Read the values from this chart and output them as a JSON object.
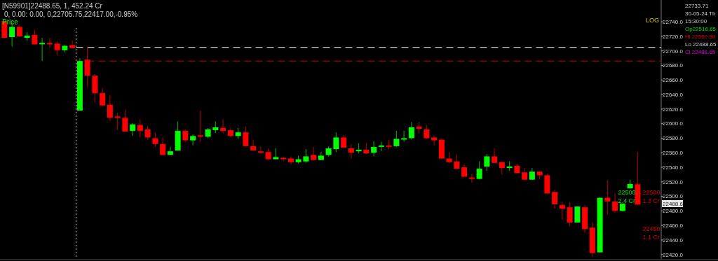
{
  "chart_data": {
    "type": "candlestick",
    "title": "[N59901]22488.65,   1,  452.24  Cr",
    "subtitle": "0,  0.00:  0.00,  0,22705.75,22417.00,-0.95%",
    "ylabel": "Price",
    "categories": [
      null,
      null,
      null,
      null,
      null,
      null,
      null,
      null,
      null,
      null,
      null,
      null,
      null,
      null,
      null,
      null,
      null,
      null,
      null,
      null,
      null,
      null,
      null,
      null,
      null,
      null,
      null,
      null,
      null,
      null,
      null,
      null,
      null,
      null,
      null,
      null,
      null,
      null,
      null,
      null,
      null,
      null,
      null,
      null,
      null,
      null,
      null,
      null,
      null,
      null,
      null,
      null,
      null,
      null,
      null,
      null,
      null,
      null,
      null,
      null,
      null,
      null,
      null,
      null,
      null,
      null,
      null,
      null,
      null,
      null,
      null,
      null,
      null,
      null,
      null,
      null,
      null,
      null,
      null,
      null,
      null,
      null,
      null,
      null,
      null
    ],
    "tick_labels": "y",
    "ylim": [
      22414,
      22770
    ],
    "yticks": [
      {
        "value": 22420,
        "label": "22420.0"
      },
      {
        "value": 22440,
        "label": "22440.0"
      },
      {
        "value": 22460,
        "label": "22460.0"
      },
      {
        "value": 22480,
        "label": "22480.0"
      },
      {
        "value": 22500,
        "label": "22500.0"
      },
      {
        "value": 22520,
        "label": "22520.0"
      },
      {
        "value": 22540,
        "label": "22540.0"
      },
      {
        "value": 22560,
        "label": "22560.0"
      },
      {
        "value": 22580,
        "label": "22580.0"
      },
      {
        "value": 22600,
        "label": "22600.0"
      },
      {
        "value": 22620,
        "label": "22620.0"
      },
      {
        "value": 22640,
        "label": "22640.0"
      },
      {
        "value": 22660,
        "label": "22660.0"
      },
      {
        "value": 22680,
        "label": "22680.0"
      },
      {
        "value": 22700,
        "label": "22700.0"
      },
      {
        "value": 22720,
        "label": "22720.0"
      },
      {
        "value": 22740,
        "label": "22740.0"
      }
    ],
    "ohlc": [
      [
        22741,
        22741,
        22717,
        22718
      ],
      [
        22719,
        22739,
        22706,
        22733
      ],
      [
        22733,
        22736,
        22719,
        22720
      ],
      [
        22718,
        22726,
        22714,
        22721
      ],
      [
        22722,
        22729,
        22709,
        22709
      ],
      [
        22710,
        22718,
        22686,
        22711
      ],
      [
        22711,
        22718,
        22704,
        22710
      ],
      [
        22710,
        22713,
        22694,
        22701
      ],
      [
        22701,
        22708,
        22698,
        22707
      ],
      [
        22708,
        22714,
        22704,
        22704
      ],
      [
        22618,
        22690,
        22618,
        22686
      ],
      [
        22688,
        22705.75,
        22651,
        22666
      ],
      [
        22666,
        22668,
        22629,
        22642
      ],
      [
        22642,
        22649,
        22623,
        22625
      ],
      [
        22626,
        22639,
        22604,
        22608
      ],
      [
        22610,
        22615,
        22591,
        22608
      ],
      [
        22608,
        22619,
        22589,
        22589
      ],
      [
        22590,
        22601,
        22583,
        22599
      ],
      [
        22598,
        22606,
        22581,
        22590
      ],
      [
        22592,
        22597,
        22578,
        22581
      ],
      [
        22580,
        22588,
        22568,
        22572
      ],
      [
        22572,
        22581,
        22556,
        22557
      ],
      [
        22557,
        22568,
        22557,
        22562
      ],
      [
        22563,
        22603,
        22563,
        22590
      ],
      [
        22590,
        22592,
        22575,
        22577
      ],
      [
        22577,
        22585,
        22570,
        22583
      ],
      [
        22584,
        22618,
        22575,
        22582
      ],
      [
        22582,
        22594,
        22580,
        22592
      ],
      [
        22591,
        22603,
        22587,
        22595
      ],
      [
        22594,
        22606,
        22587,
        22590
      ],
      [
        22591,
        22594,
        22581,
        22583
      ],
      [
        22583,
        22594,
        22579,
        22588
      ],
      [
        22588,
        22596,
        22569,
        22569
      ],
      [
        22569,
        22578,
        22563,
        22563
      ],
      [
        22562,
        22569,
        22558,
        22561
      ],
      [
        22561,
        22566,
        22550,
        22551
      ],
      [
        22551,
        22566,
        22551,
        22554
      ],
      [
        22553,
        22555,
        22548,
        22552
      ],
      [
        22552,
        22555,
        22544,
        22547
      ],
      [
        22547,
        22556,
        22545,
        22551
      ],
      [
        22548,
        22565,
        22546,
        22555
      ],
      [
        22557,
        22568,
        22550,
        22550
      ],
      [
        22550,
        22561,
        22550,
        22556
      ],
      [
        22557,
        22569,
        22555,
        22566
      ],
      [
        22565,
        22588,
        22561,
        22581
      ],
      [
        22581,
        22584,
        22567,
        22567
      ],
      [
        22566,
        22572,
        22552,
        22560
      ],
      [
        22562,
        22573,
        22559,
        22564
      ],
      [
        22564,
        22573,
        22558,
        22559
      ],
      [
        22560,
        22576,
        22555,
        22568
      ],
      [
        22569,
        22575,
        22562,
        22570
      ],
      [
        22570,
        22578,
        22564,
        22569
      ],
      [
        22569,
        22590,
        22568,
        22579
      ],
      [
        22579,
        22590,
        22575,
        22580
      ],
      [
        22580,
        22602,
        22578,
        22595
      ],
      [
        22596,
        22602,
        22586,
        22593
      ],
      [
        22592,
        22598,
        22579,
        22580
      ],
      [
        22581,
        22584,
        22570,
        22577
      ],
      [
        22578,
        22580,
        22552,
        22552
      ],
      [
        22552,
        22561,
        22546,
        22547
      ],
      [
        22548,
        22557,
        22538,
        22538
      ],
      [
        22540,
        22544,
        22527,
        22527
      ],
      [
        22526,
        22531,
        22519,
        22524
      ],
      [
        22524,
        22548,
        22523,
        22538
      ],
      [
        22541,
        22558,
        22535,
        22555
      ],
      [
        22555,
        22566,
        22546,
        22546
      ],
      [
        22547,
        22548,
        22530,
        22539
      ],
      [
        22540,
        22548,
        22535,
        22541
      ],
      [
        22542,
        22545,
        22531,
        22532
      ],
      [
        22533,
        22539,
        22521,
        22523
      ],
      [
        22523,
        22539,
        22523,
        22534
      ],
      [
        22534,
        22534,
        22523,
        22529
      ],
      [
        22529,
        22531,
        22503,
        22504
      ],
      [
        22506,
        22509,
        22483,
        22489
      ],
      [
        22488,
        22493,
        22468,
        22483
      ],
      [
        22485,
        22492,
        22459,
        22464
      ],
      [
        22464,
        22486,
        22464,
        22486
      ],
      [
        22485,
        22488,
        22450,
        22455
      ],
      [
        22457,
        22464,
        22417,
        22422
      ],
      [
        22423,
        22499,
        22423,
        22498
      ],
      [
        22498,
        22522,
        22475,
        22493
      ],
      [
        22493,
        22504,
        22477,
        22480
      ],
      [
        22480,
        22490,
        22479,
        22490
      ],
      [
        22511,
        22523,
        22511,
        22517
      ],
      [
        22516.65,
        22560.9,
        22488.65,
        22488.65
      ]
    ],
    "ref_lines": [
      {
        "axis": "y",
        "value": 22705,
        "color": "#c8c8c8",
        "line_style": "dashed"
      },
      {
        "axis": "y",
        "value": 22686,
        "color": "#a00000",
        "line_style": "dashed"
      }
    ],
    "annotations": [
      "22500\n2.4 Cr",
      "22500\n1.3 Cr",
      "22450\n1.1 Cr",
      "22488.6",
      "LOG",
      "22733.71",
      "30-05-24 Th",
      "15:30:00",
      "Op22516.65",
      "Hi 22560.90",
      "Lo 22488.65",
      "Cl 22488.65"
    ]
  }
}
